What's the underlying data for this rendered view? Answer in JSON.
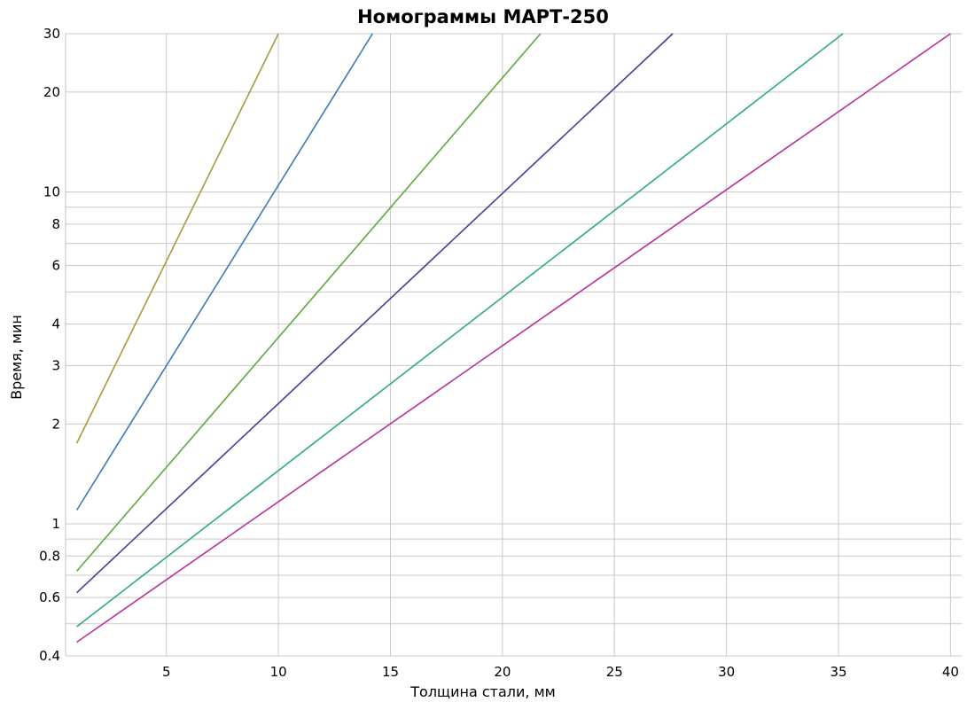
{
  "chart_data": {
    "type": "line",
    "title": "Номограммы МАРТ-250",
    "xlabel": "Толщина стали, мм",
    "ylabel": "Время, мин",
    "xlim": [
      0.5,
      40.5
    ],
    "ylim": [
      0.4,
      30
    ],
    "y_scale": "log",
    "grid": true,
    "x_ticks": [
      5,
      10,
      15,
      20,
      25,
      30,
      35,
      40
    ],
    "y_ticks": [
      0.4,
      0.6,
      0.8,
      1,
      2,
      3,
      4,
      6,
      8,
      10,
      20,
      30
    ],
    "y_grid": [
      0.4,
      0.5,
      0.6,
      0.7,
      0.8,
      0.9,
      1,
      2,
      3,
      4,
      5,
      6,
      7,
      8,
      9,
      10,
      20,
      30
    ],
    "series": [
      {
        "x": [
          1,
          10
        ],
        "y": [
          1.75,
          30
        ],
        "color": "#a89a3c"
      },
      {
        "x": [
          1,
          14.2
        ],
        "y": [
          1.1,
          30
        ],
        "color": "#3a7ab8"
      },
      {
        "x": [
          1,
          21.7
        ],
        "y": [
          0.72,
          30
        ],
        "color": "#5aaa3a"
      },
      {
        "x": [
          1,
          27.6
        ],
        "y": [
          0.62,
          30
        ],
        "color": "#4b3c9a"
      },
      {
        "x": [
          1,
          35.2
        ],
        "y": [
          0.49,
          30
        ],
        "color": "#2ea88a"
      },
      {
        "x": [
          1,
          40
        ],
        "y": [
          0.44,
          30
        ],
        "color": "#b8329a"
      }
    ]
  }
}
